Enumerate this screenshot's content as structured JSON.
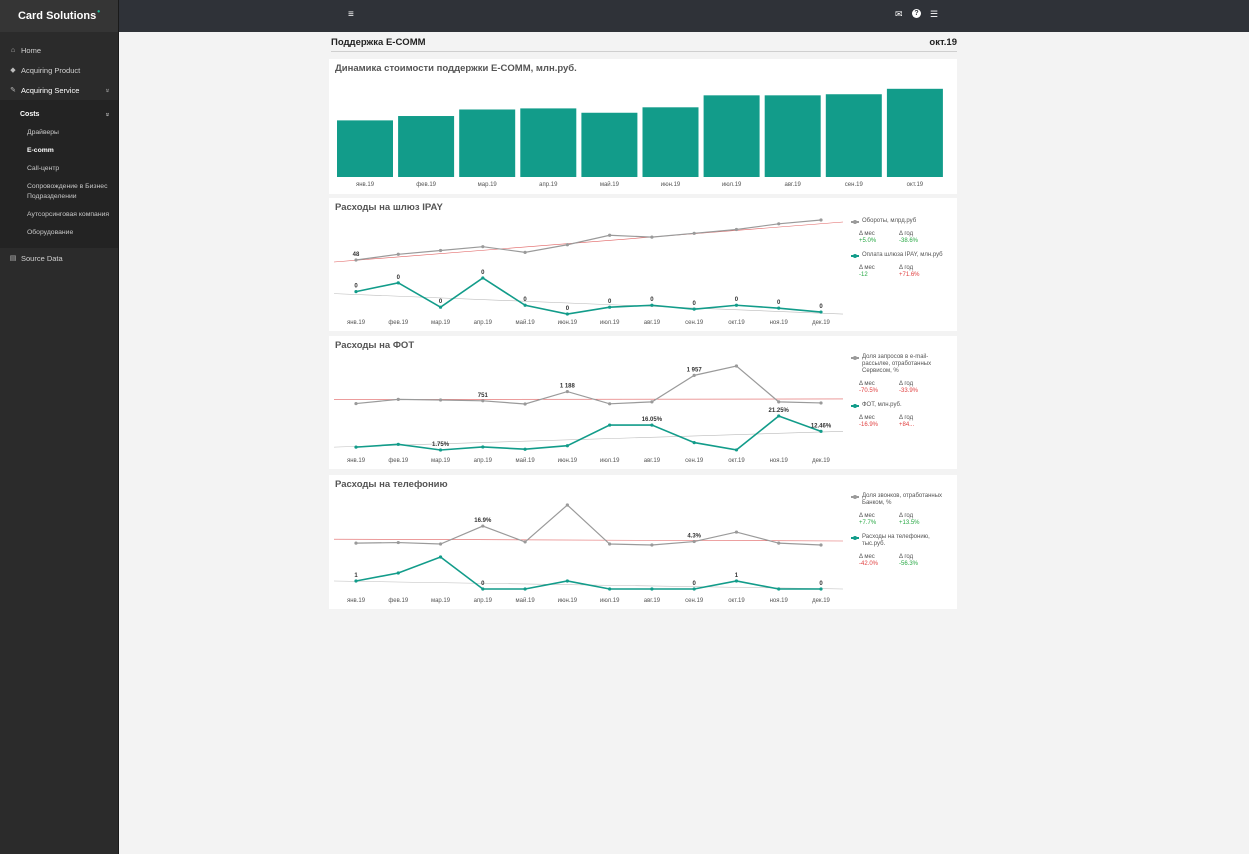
{
  "app": {
    "brand": "Card Solutions",
    "brand_mark": "•"
  },
  "sidebar": {
    "items": [
      {
        "label": "Home",
        "icon": "home-icon"
      },
      {
        "label": "Acquiring Product",
        "icon": "tag-icon"
      },
      {
        "label": "Acquiring Service",
        "icon": "wrench-icon"
      },
      {
        "label": "Source Data",
        "icon": "database-icon"
      }
    ],
    "submenu_head": "Costs",
    "sub_items": [
      {
        "label": "Драйверы"
      },
      {
        "label": "E-comm"
      },
      {
        "label": "Call-центр"
      },
      {
        "label": "Сопровождение в Бизнес Подразделении"
      },
      {
        "label": "Аутсорсинговая компания"
      },
      {
        "label": "Оборудование"
      }
    ],
    "chevron": "»"
  },
  "topbar": {
    "menu_icon": "≡",
    "mail_icon": "✉",
    "help_icon": "?",
    "list_icon": "☰"
  },
  "page": {
    "title": "Поддержка E-COMM",
    "period": "окт.19"
  },
  "colors": {
    "teal": "#129c8a",
    "grey_line": "#9a9a9a",
    "trend_red": "#e06060",
    "positive": "#27a844",
    "negative": "#e04040"
  },
  "charts": {
    "ecomm": {
      "title": "Динамика стоимости поддержки E-COMM, млн.руб.",
      "categories": [
        "янв.19",
        "фев.19",
        "мар.19",
        "апр.19",
        "май.19",
        "июн.19",
        "июл.19",
        "авг.19",
        "сен.19",
        "окт.19"
      ]
    },
    "ipay": {
      "title": "Расходы на шлюз IPAY",
      "categories": [
        "янв.19",
        "фев.19",
        "мар.19",
        "апр.19",
        "май.19",
        "июн.19",
        "июл.19",
        "авг.19",
        "сен.19",
        "окт.19",
        "ноя.19",
        "дек.19"
      ],
      "lower_labels": [
        "0",
        "0",
        "0",
        "0",
        "0",
        "0",
        "0",
        "0",
        "0",
        "0",
        "0",
        "0"
      ],
      "upper_labels": [
        "48",
        "",
        "",
        "",
        "",
        "",
        "",
        "",
        "",
        "",
        "",
        ""
      ],
      "legend": [
        {
          "label": "Обороты, млрд.руб",
          "d_month": "+5.0%",
          "d_year": "-38.6%",
          "month_cls": "pos",
          "year_cls": "pos"
        },
        {
          "label": "Оплата шлюза IPAY, млн.руб",
          "d_month": "-12",
          "d_year": "+71.6%",
          "month_cls": "pos",
          "year_cls": "neg"
        }
      ]
    },
    "fot": {
      "title": "Расходы на ФОТ",
      "categories": [
        "янв.19",
        "фев.19",
        "мар.19",
        "апр.19",
        "май.19",
        "июн.19",
        "июл.19",
        "авг.19",
        "сен.19",
        "окт.19",
        "ноя.19",
        "дек.19"
      ],
      "upper_labels": [
        "",
        "",
        "",
        "751",
        "",
        "1 188",
        "",
        "",
        "1 957",
        "",
        "",
        ""
      ],
      "lower_labels": [
        "",
        "",
        "1.75%",
        "",
        "",
        "",
        "",
        "16.05%",
        "",
        "",
        "21.25%",
        "12.46%"
      ],
      "legend": [
        {
          "label": "Доля запросов в e-mail-рассылке, отработанных Сервисом, %",
          "d_month": "-70.5%",
          "d_year": "-33.9%",
          "month_cls": "neg",
          "year_cls": "neg"
        },
        {
          "label": "ФОТ, млн.руб.",
          "d_month": "-16.9%",
          "d_year": "+84...",
          "month_cls": "neg",
          "year_cls": "neg"
        }
      ]
    },
    "phone": {
      "title": "Расходы на телефонию",
      "categories": [
        "янв.19",
        "фев.19",
        "мар.19",
        "апр.19",
        "май.19",
        "июн.19",
        "июл.19",
        "авг.19",
        "сен.19",
        "окт.19",
        "ноя.19",
        "дек.19"
      ],
      "upper_labels": [
        "",
        "",
        "",
        "16.9%",
        "",
        "",
        "",
        "",
        "4.3%",
        "",
        "",
        ""
      ],
      "lower_labels": [
        "1",
        "",
        "",
        "0",
        "",
        "",
        "",
        "",
        "0",
        "1",
        "",
        "0"
      ],
      "legend": [
        {
          "label": "Доля звонков, отработанных Банком, %",
          "d_month": "+7.7%",
          "d_year": "+13.5%",
          "month_cls": "pos",
          "year_cls": "pos"
        },
        {
          "label": "Расходы на телефонию, тыс.руб.",
          "d_month": "-42.0%",
          "d_year": "-56.3%",
          "month_cls": "neg",
          "year_cls": "pos"
        }
      ]
    }
  },
  "legend_headers": {
    "month": "Δ мес",
    "year": "Δ год"
  },
  "chart_data": [
    {
      "type": "bar",
      "title": "Динамика стоимости поддержки E-COMM, млн.руб.",
      "categories": [
        "янв.19",
        "фев.19",
        "мар.19",
        "апр.19",
        "май.19",
        "июн.19",
        "июл.19",
        "авг.19",
        "сен.19",
        "окт.19"
      ],
      "values": [
        52,
        56,
        62,
        63,
        59,
        64,
        75,
        75,
        76,
        81
      ],
      "ylim": [
        0,
        90
      ]
    },
    {
      "type": "line",
      "title": "Расходы на шлюз IPAY",
      "categories": [
        "янв.19",
        "фев.19",
        "мар.19",
        "апр.19",
        "май.19",
        "июн.19",
        "июл.19",
        "авг.19",
        "сен.19",
        "окт.19",
        "ноя.19",
        "дек.19"
      ],
      "series": [
        {
          "name": "Обороты, млрд.руб",
          "values": [
            48,
            51,
            53,
            55,
            52,
            56,
            61,
            60,
            62,
            64,
            67,
            69
          ]
        },
        {
          "name": "Оплата шлюза IPAY, млн.руб",
          "values": [
            0.26,
            0.35,
            0.1,
            0.4,
            0.12,
            0.03,
            0.1,
            0.12,
            0.08,
            0.12,
            0.09,
            0.05
          ]
        }
      ]
    },
    {
      "type": "line",
      "title": "Расходы на ФОТ",
      "categories": [
        "янв.19",
        "фев.19",
        "мар.19",
        "апр.19",
        "май.19",
        "июн.19",
        "июл.19",
        "авг.19",
        "сен.19",
        "окт.19",
        "ноя.19",
        "дек.19"
      ],
      "series": [
        {
          "name": "Доля запросов в e-mail-рассылке, отработанных Сервисом, %",
          "values": [
            620,
            820,
            790,
            751,
            600,
            1188,
            610,
            700,
            1957,
            2400,
            700,
            650
          ]
        },
        {
          "name": "ФОТ, млн.руб.",
          "values": [
            3.4,
            5.0,
            1.75,
            3.5,
            2.2,
            4.2,
            16.05,
            16.05,
            6.0,
            1.8,
            21.25,
            12.46
          ]
        }
      ]
    },
    {
      "type": "line",
      "title": "Расходы на телефонию",
      "categories": [
        "янв.19",
        "фев.19",
        "мар.19",
        "апр.19",
        "май.19",
        "июн.19",
        "июл.19",
        "авг.19",
        "сен.19",
        "окт.19",
        "ноя.19",
        "дек.19"
      ],
      "series": [
        {
          "name": "Доля звонков, отработанных Банком, %",
          "values": [
            3.0,
            3.5,
            2.3,
            16.9,
            4.0,
            34.0,
            2.3,
            1.5,
            4.3,
            12.0,
            3.0,
            1.5
          ]
        },
        {
          "name": "Расходы на телефонию, тыс.руб.",
          "values": [
            1,
            2,
            4,
            0,
            0,
            1,
            0,
            0,
            0,
            1,
            0,
            0
          ]
        }
      ]
    }
  ]
}
